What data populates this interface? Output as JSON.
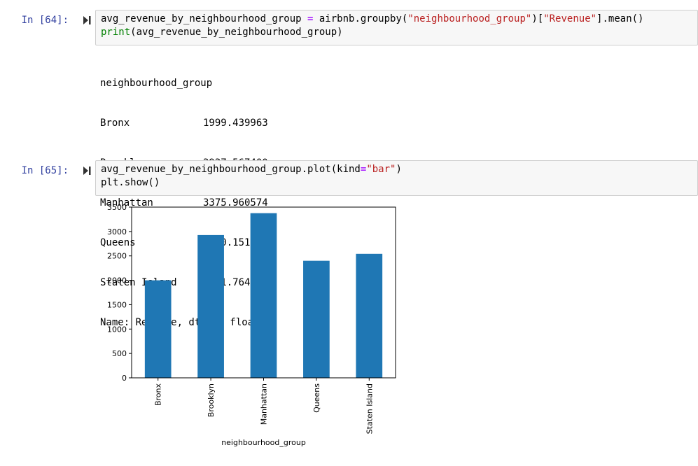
{
  "cells": [
    {
      "prompt": "In [64]:",
      "code": {
        "line1": {
          "t1": "avg_revenue_by_neighbourhood_group ",
          "op1": "=",
          "t2": " airbnb.groupby(",
          "s1": "\"neighbourhood_group\"",
          "t3": ")[",
          "s2": "\"Revenue\"",
          "t4": "].mean()"
        },
        "line2": {
          "builtin": "print",
          "t1": "(avg_revenue_by_neighbourhood_group)"
        }
      },
      "output": {
        "header": "neighbourhood_group",
        "rows": [
          {
            "index": "Bronx",
            "value": "1999.439963"
          },
          {
            "index": "Brooklyn",
            "value": "2927.567400"
          },
          {
            "index": "Manhattan",
            "value": "3375.960574"
          },
          {
            "index": "Queens",
            "value": "2400.151077"
          },
          {
            "index": "Staten Island",
            "value": "2541.764075"
          }
        ],
        "footer": "Name: Revenue, dtype: float64"
      }
    },
    {
      "prompt": "In [65]:",
      "code": {
        "line1": {
          "t1": "avg_revenue_by_neighbourhood_group.plot(kind",
          "op1": "=",
          "s1": "\"bar\"",
          "t2": ")"
        },
        "line2": {
          "t1": "plt.show()"
        }
      }
    }
  ],
  "colors": {
    "prompt": "#303f9f",
    "bar": "#1f77b4",
    "string": "#ba2121",
    "operator": "#aa22ff",
    "builtin": "#008000"
  },
  "icons": [
    "run-cell-icon"
  ],
  "chart_data": {
    "type": "bar",
    "categories": [
      "Bronx",
      "Brooklyn",
      "Manhattan",
      "Queens",
      "Staten Island"
    ],
    "values": [
      1999.44,
      2927.57,
      3375.96,
      2400.15,
      2541.76
    ],
    "title": "",
    "xlabel": "neighbourhood_group",
    "ylabel": "",
    "ylim": [
      0,
      3500
    ],
    "yticks": [
      "0",
      "500",
      "1000",
      "1500",
      "2000",
      "2500",
      "3000",
      "3500"
    ],
    "grid": false,
    "legend": "none"
  }
}
